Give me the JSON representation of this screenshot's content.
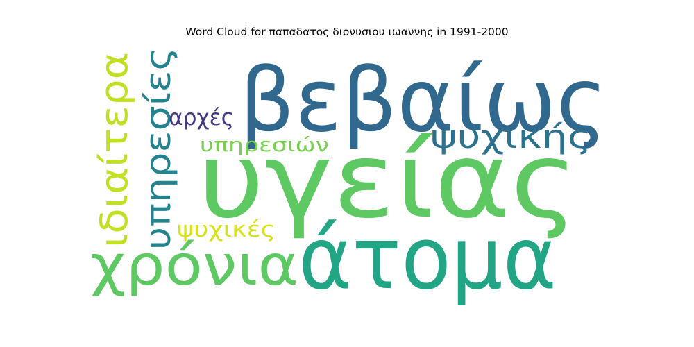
{
  "title": "Word Cloud for παπαδατος διονυσιου ιωαννης in 1991-2000",
  "words": [
    {
      "text": "βεβαίως",
      "color": "#31688e"
    },
    {
      "text": "υγείας",
      "color": "#5ec962"
    },
    {
      "text": "άτομα",
      "color": "#21a585"
    },
    {
      "text": "χρόνια",
      "color": "#5ec962"
    },
    {
      "text": "ιδιαίτερα",
      "color": "#c2df23"
    },
    {
      "text": "υπηρεσίες",
      "color": "#25838e"
    },
    {
      "text": "ψυχικής",
      "color": "#2c728e"
    },
    {
      "text": "αρχές",
      "color": "#453781"
    },
    {
      "text": "υπηρεσιών",
      "color": "#7ad151"
    },
    {
      "text": "ψυχικές",
      "color": "#d8e219"
    }
  ]
}
